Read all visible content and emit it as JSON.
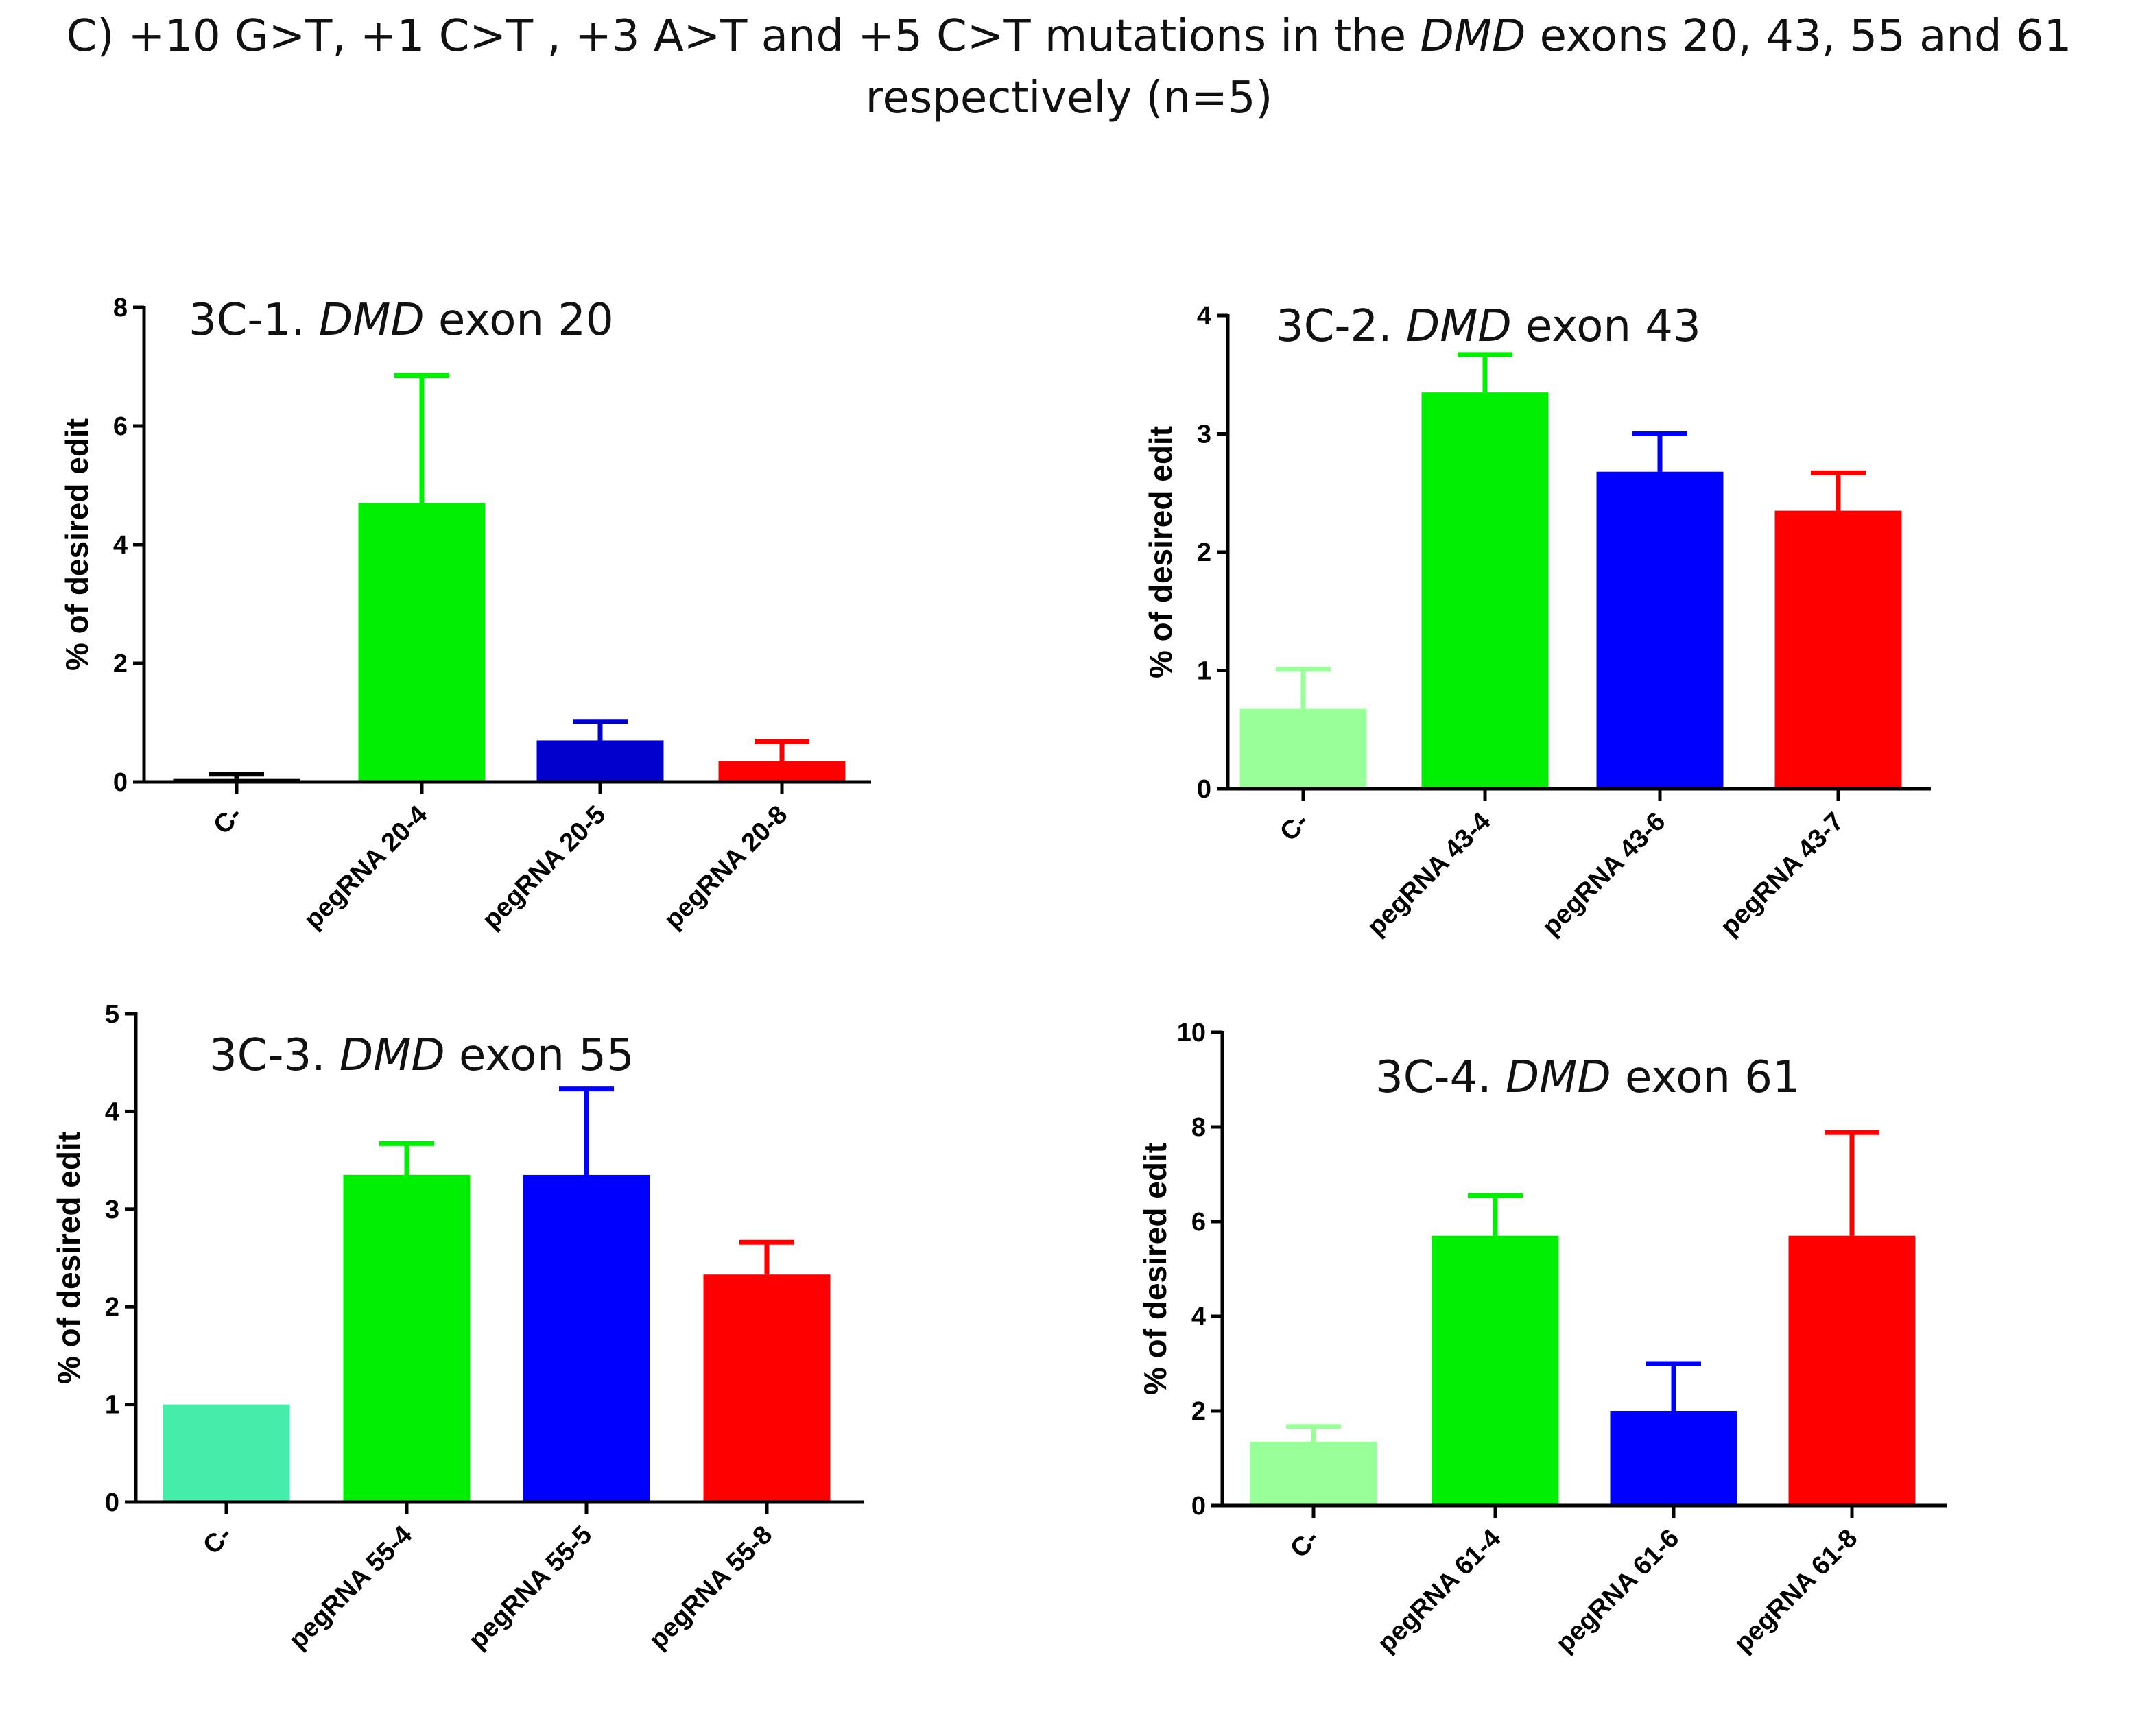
{
  "figure_title": {
    "line1_pre": "C) +10 G>T, +1 C>T , +3 A>T  and  +5 C>T mutations in the ",
    "gene": "DMD",
    "line1_post": "  exons 20, 43, 55 and 61",
    "line2": "respectively (n=5)"
  },
  "chart_data": [
    {
      "type": "bar",
      "title_prefix": "3C-1. ",
      "title_gene": "DMD",
      "title_suffix": " exon 20",
      "ylabel": "% of desired edit",
      "xlabel": "",
      "ylim": [
        0,
        8
      ],
      "yticks": [
        0,
        2,
        4,
        6,
        8
      ],
      "categories": [
        "C-",
        "pegRNA 20-4",
        "pegRNA 20-5",
        "pegRNA 20-8"
      ],
      "values": [
        0.05,
        4.7,
        0.7,
        0.35
      ],
      "errors": [
        0.08,
        2.15,
        0.32,
        0.33
      ],
      "colors": [
        "#000000",
        "#00ee00",
        "#0000cc",
        "#ff0000"
      ]
    },
    {
      "type": "bar",
      "title_prefix": "3C-2. ",
      "title_gene": "DMD",
      "title_suffix": " exon 43",
      "ylabel": "% of desired edit",
      "xlabel": "",
      "ylim": [
        0,
        4
      ],
      "yticks": [
        0,
        1,
        2,
        3,
        4
      ],
      "categories": [
        "C-",
        "pegRNA 43-4",
        "pegRNA 43-6",
        "pegRNA 43-7"
      ],
      "values": [
        0.68,
        3.35,
        2.68,
        2.35
      ],
      "errors": [
        0.33,
        0.32,
        0.32,
        0.32
      ],
      "colors": [
        "#99ff99",
        "#00ee00",
        "#0000ff",
        "#ff0000"
      ]
    },
    {
      "type": "bar",
      "title_prefix": "3C-3. ",
      "title_gene": "DMD",
      "title_suffix": " exon 55",
      "ylabel": "% of desired edit",
      "xlabel": "",
      "ylim": [
        0,
        5
      ],
      "yticks": [
        0,
        1,
        2,
        3,
        4,
        5
      ],
      "categories": [
        "C-",
        "pegRNA 55-4",
        "pegRNA 55-5",
        "pegRNA 55-8"
      ],
      "values": [
        1.0,
        3.35,
        3.35,
        2.33
      ],
      "errors": [
        0.0,
        0.32,
        0.88,
        0.33
      ],
      "colors": [
        "#44eeaa",
        "#00ee00",
        "#0000ff",
        "#ff0000"
      ]
    },
    {
      "type": "bar",
      "title_prefix": "3C-4. ",
      "title_gene": "DMD",
      "title_suffix": " exon 61",
      "ylabel": "% of desired edit",
      "xlabel": "",
      "ylim": [
        0,
        10
      ],
      "yticks": [
        0,
        2,
        4,
        6,
        8,
        10
      ],
      "categories": [
        "C-",
        "pegRNA 61-4",
        "pegRNA 61-6",
        "pegRNA 61-8"
      ],
      "values": [
        1.35,
        5.7,
        2.0,
        5.7
      ],
      "errors": [
        0.32,
        0.85,
        1.0,
        2.18
      ],
      "colors": [
        "#99ff99",
        "#00ee00",
        "#0000ff",
        "#ff0000"
      ]
    }
  ]
}
